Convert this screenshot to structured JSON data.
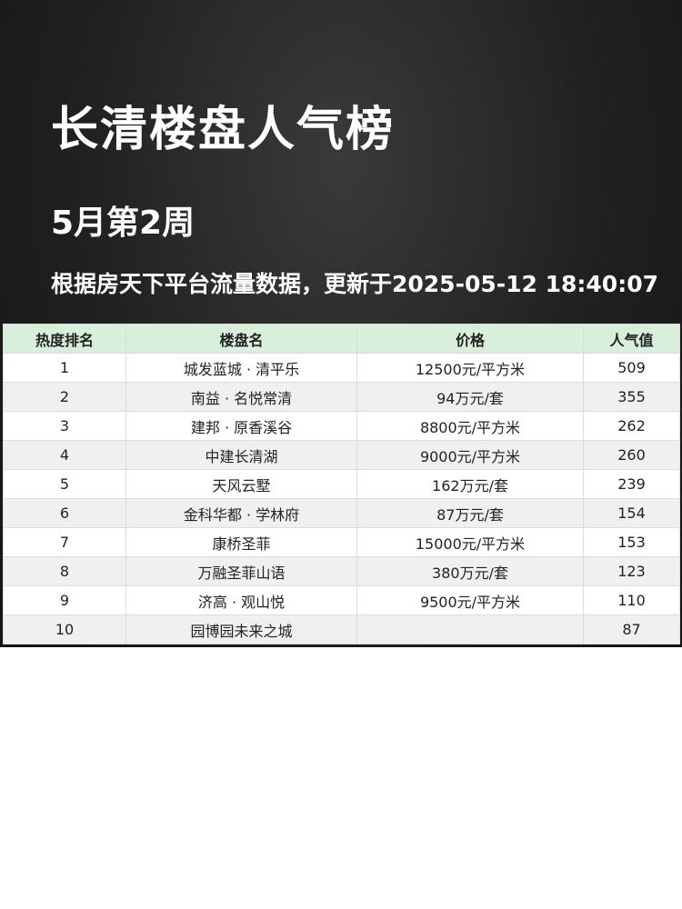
{
  "title": "长清楼盘人气榜",
  "subtitle": "5月第2周",
  "note": "根据房天下平台流量数据，更新于2025-05-12 18:40:07",
  "table": {
    "headers": [
      "热度排名",
      "楼盘名",
      "价格",
      "人气值"
    ],
    "rows": [
      [
        "1",
        "城发蓝城 · 清平乐",
        "12500元/平方米",
        "509"
      ],
      [
        "2",
        "南益 · 名悦常清",
        "94万元/套",
        "355"
      ],
      [
        "3",
        "建邦 · 原香溪谷",
        "8800元/平方米",
        "262"
      ],
      [
        "4",
        "中建长清湖",
        "9000元/平方米",
        "260"
      ],
      [
        "5",
        "天风云墅",
        "162万元/套",
        "239"
      ],
      [
        "6",
        "金科华都 · 学林府",
        "87万元/套",
        "154"
      ],
      [
        "7",
        "康桥圣菲",
        "15000元/平方米",
        "153"
      ],
      [
        "8",
        "万融圣菲山语",
        "380万元/套",
        "123"
      ],
      [
        "9",
        "济高 · 观山悦",
        "9500元/平方米",
        "110"
      ],
      [
        "10",
        "园博园未来之城",
        "",
        "87"
      ]
    ]
  }
}
